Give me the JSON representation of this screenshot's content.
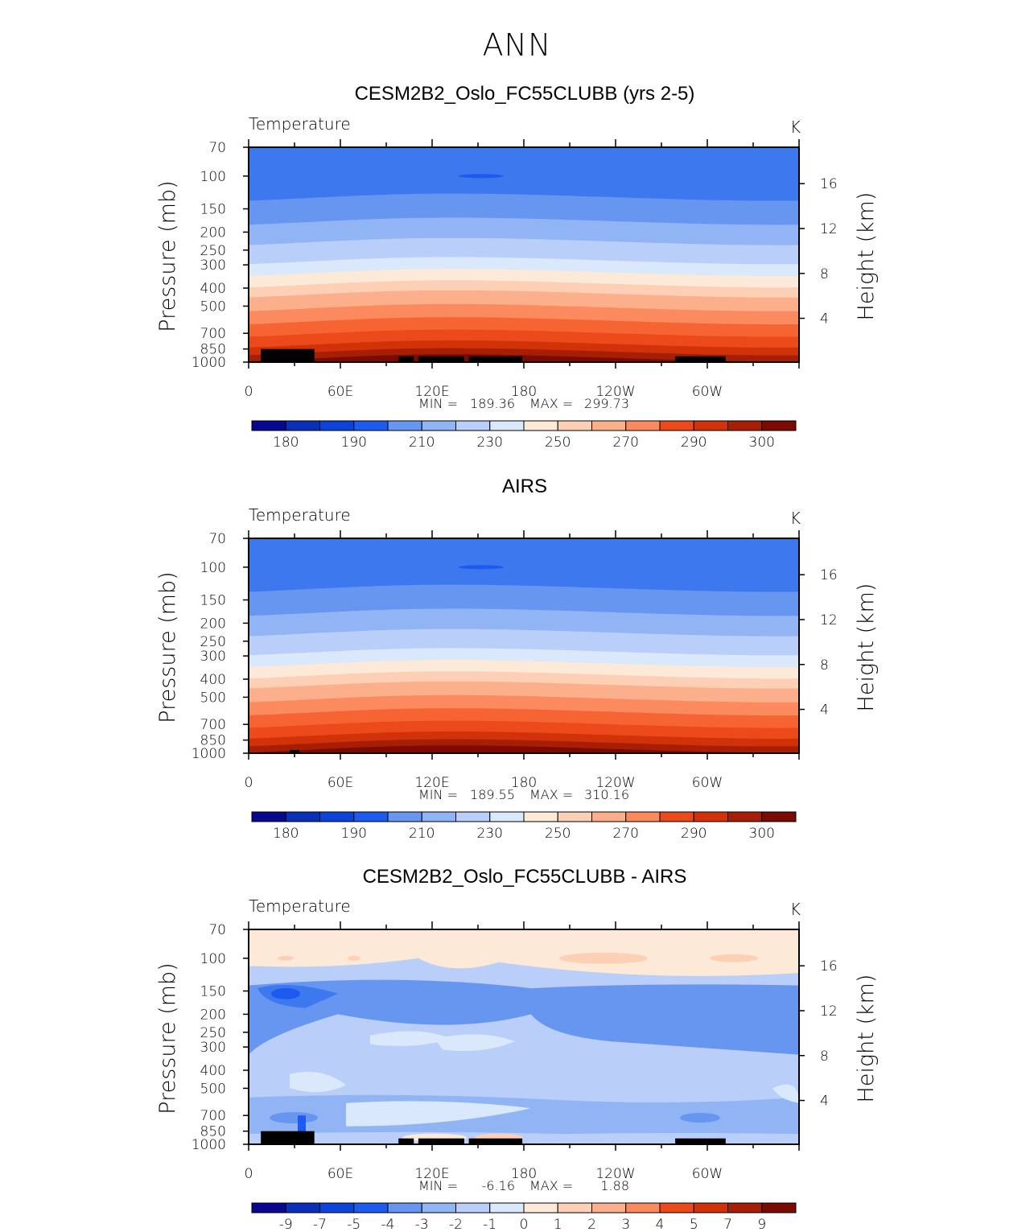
{
  "figure_title": "ANN",
  "units": "K",
  "variable": "Temperature",
  "left_axis_label": "Pressure (mb)",
  "right_axis_label": "Height (km)",
  "colors": {
    "abs_levels": [
      "#08088f",
      "#0a2fb8",
      "#0b43db",
      "#1d5af0",
      "#3d78ee",
      "#6796f0",
      "#91b4f5",
      "#b9cef8",
      "#d9e8fb",
      "#fde9d8",
      "#fdd0b5",
      "#fcaf8b",
      "#fb8a5f",
      "#f76434",
      "#ec4a1a",
      "#d13209",
      "#a61f04",
      "#7b0b02"
    ],
    "diff_levels": [
      "#08088f",
      "#0a2fb8",
      "#0b43db",
      "#1d5af0",
      "#3d78ee",
      "#6796f0",
      "#91b4f5",
      "#b9cef8",
      "#d9e8fb",
      "#fde9d8",
      "#fdd0b5",
      "#fcaf8b",
      "#fb8a5f",
      "#f76434",
      "#ec4a1a",
      "#d13209",
      "#a61f04",
      "#7b0b02"
    ],
    "topography": "#000000"
  },
  "chart_data": [
    {
      "type": "heatmap",
      "title": "CESM2B2_Oslo_FC55CLUBB (yrs 2-5)",
      "subtitle": "Temperature",
      "units": "K",
      "ylabel": "Pressure (mb)",
      "y2label": "Height (km)",
      "x_ticks": [
        "0",
        "60E",
        "120E",
        "180",
        "120W",
        "60W"
      ],
      "x_range_lon": [
        0,
        360
      ],
      "y_ticks": [
        "70",
        "100",
        "150",
        "200",
        "250",
        "300",
        "400",
        "500",
        "700",
        "850",
        "1000"
      ],
      "y_tick_values": [
        70,
        100,
        150,
        200,
        250,
        300,
        400,
        500,
        700,
        850,
        1000
      ],
      "y_range": [
        70,
        1000
      ],
      "y2_ticks": [
        "4",
        "8",
        "12",
        "16"
      ],
      "y2_tick_values": [
        4,
        8,
        12,
        16
      ],
      "stats": {
        "min_label": "MIN",
        "min": "189.36",
        "max_label": "MAX",
        "max": "299.73"
      },
      "colorbar_labels": [
        "180",
        "190",
        "210",
        "230",
        "250",
        "270",
        "290",
        "300"
      ],
      "level_pressures": [
        130,
        175,
        225,
        285,
        330,
        380,
        430,
        510,
        600,
        700,
        800,
        880,
        950
      ],
      "level_colors": [
        5,
        6,
        7,
        8,
        9,
        10,
        11,
        12,
        13,
        14,
        15,
        16,
        17
      ],
      "topo": [
        [
          8,
          43,
          850
        ],
        [
          98,
          108,
          930
        ],
        [
          111,
          141,
          930
        ],
        [
          144,
          179,
          930
        ],
        [
          279,
          312,
          930
        ],
        [
          30,
          40,
          880
        ]
      ]
    },
    {
      "type": "heatmap",
      "title": "AIRS",
      "subtitle": "Temperature",
      "units": "K",
      "ylabel": "Pressure (mb)",
      "y2label": "Height (km)",
      "x_ticks": [
        "0",
        "60E",
        "120E",
        "180",
        "120W",
        "60W"
      ],
      "x_range_lon": [
        0,
        360
      ],
      "y_ticks": [
        "70",
        "100",
        "150",
        "200",
        "250",
        "300",
        "400",
        "500",
        "700",
        "850",
        "1000"
      ],
      "y_tick_values": [
        70,
        100,
        150,
        200,
        250,
        300,
        400,
        500,
        700,
        850,
        1000
      ],
      "y_range": [
        70,
        1000
      ],
      "y2_ticks": [
        "4",
        "8",
        "12",
        "16"
      ],
      "y2_tick_values": [
        4,
        8,
        12,
        16
      ],
      "stats": {
        "min_label": "MIN",
        "min": "189.55",
        "max_label": "MAX",
        "max": "310.16"
      },
      "colorbar_labels": [
        "180",
        "190",
        "210",
        "230",
        "250",
        "270",
        "290",
        "300"
      ],
      "level_pressures": [
        130,
        175,
        225,
        285,
        330,
        380,
        430,
        510,
        600,
        700,
        800,
        880,
        950
      ],
      "level_colors": [
        5,
        6,
        7,
        8,
        9,
        10,
        11,
        12,
        13,
        14,
        15,
        16,
        17
      ],
      "topo": [
        [
          27,
          33,
          960
        ]
      ]
    },
    {
      "type": "heatmap",
      "title": "CESM2B2_Oslo_FC55CLUBB - AIRS",
      "subtitle": "Temperature",
      "units": "K",
      "ylabel": "Pressure (mb)",
      "y2label": "Height (km)",
      "x_ticks": [
        "0",
        "60E",
        "120E",
        "180",
        "120W",
        "60W"
      ],
      "x_range_lon": [
        0,
        360
      ],
      "y_ticks": [
        "70",
        "100",
        "150",
        "200",
        "250",
        "300",
        "400",
        "500",
        "700",
        "850",
        "1000"
      ],
      "y_tick_values": [
        70,
        100,
        150,
        200,
        250,
        300,
        400,
        500,
        700,
        850,
        1000
      ],
      "y_range": [
        70,
        1000
      ],
      "y2_ticks": [
        "4",
        "8",
        "12",
        "16"
      ],
      "y2_tick_values": [
        4,
        8,
        12,
        16
      ],
      "stats": {
        "min_label": "MIN",
        "min": "-6.16",
        "max_label": "MAX",
        "max": "1.88"
      },
      "colorbar_labels": [
        "-9",
        "-7",
        "-5",
        "-4",
        "-3",
        "-2",
        "-1",
        "0",
        "1",
        "2",
        "3",
        "4",
        "5",
        "7",
        "9"
      ],
      "topo": [
        [
          8,
          43,
          850
        ],
        [
          98,
          108,
          930
        ],
        [
          111,
          141,
          930
        ],
        [
          144,
          179,
          930
        ],
        [
          279,
          312,
          930
        ],
        [
          30,
          40,
          880
        ]
      ]
    }
  ]
}
